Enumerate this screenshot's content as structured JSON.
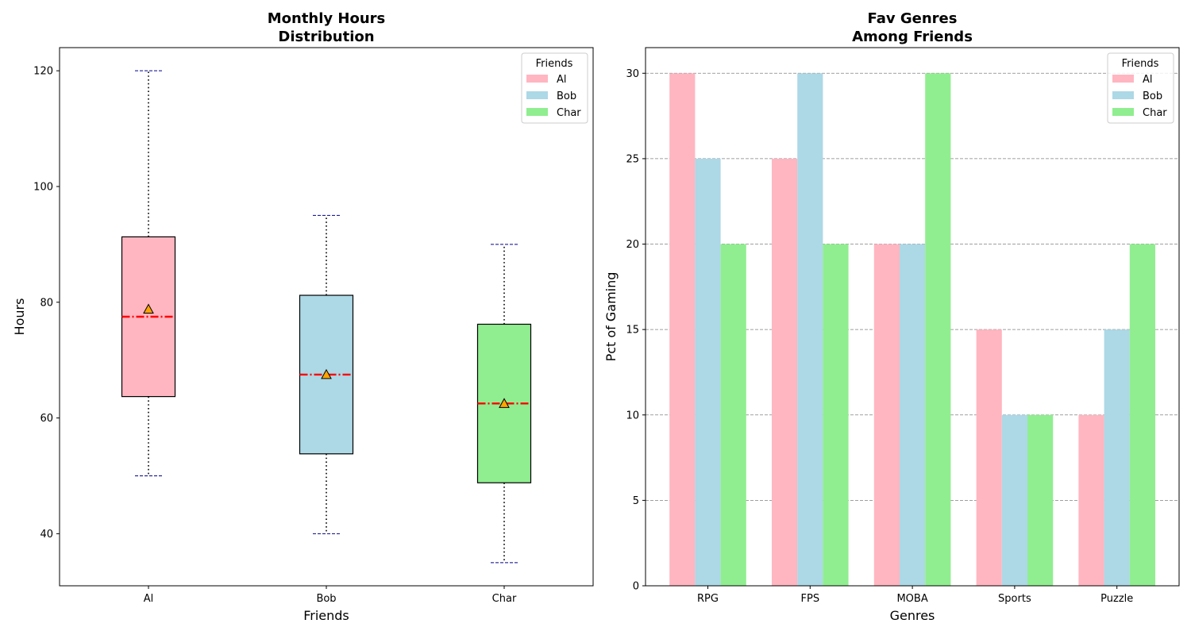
{
  "chart_data": [
    {
      "type": "box",
      "title_line1": "Monthly Hours",
      "title_line2": "Distribution",
      "xlabel": "Friends",
      "ylabel": "Hours",
      "categories": [
        "Al",
        "Bob",
        "Char"
      ],
      "ylim": [
        31,
        124
      ],
      "yticks": [
        40,
        60,
        80,
        100,
        120
      ],
      "boxes": [
        {
          "name": "Al",
          "min": 50,
          "q1": 63.7,
          "median": 77.5,
          "q3": 91.3,
          "max": 120,
          "mean": 78.8,
          "color": "#ffb6c1"
        },
        {
          "name": "Bob",
          "min": 40,
          "q1": 53.8,
          "median": 67.5,
          "q3": 81.2,
          "max": 95,
          "mean": 67.5,
          "color": "#add8e6"
        },
        {
          "name": "Char",
          "min": 35,
          "q1": 48.8,
          "median": 62.5,
          "q3": 76.2,
          "max": 90,
          "mean": 62.5,
          "color": "#90ee90"
        }
      ],
      "legend_title": "Friends",
      "legend_position": "top-right",
      "grid": false,
      "median_color": "#ff0000",
      "mean_marker_color": "#ffa500",
      "cap_color": "#00008b"
    },
    {
      "type": "bar",
      "title_line1": "Fav Genres",
      "title_line2": "Among Friends",
      "xlabel": "Genres",
      "ylabel": "Pct of Gaming",
      "categories": [
        "RPG",
        "FPS",
        "MOBA",
        "Sports",
        "Puzzle"
      ],
      "ylim": [
        0,
        31.5
      ],
      "yticks": [
        0,
        5,
        10,
        15,
        20,
        25,
        30
      ],
      "series": [
        {
          "name": "Al",
          "values": [
            30,
            25,
            20,
            15,
            10
          ],
          "color": "#ffb6c1"
        },
        {
          "name": "Bob",
          "values": [
            25,
            30,
            20,
            10,
            15
          ],
          "color": "#add8e6"
        },
        {
          "name": "Char",
          "values": [
            20,
            20,
            30,
            10,
            20
          ],
          "color": "#90ee90"
        }
      ],
      "legend_title": "Friends",
      "legend_position": "top-right",
      "grid": true,
      "grid_axis": "y"
    }
  ]
}
